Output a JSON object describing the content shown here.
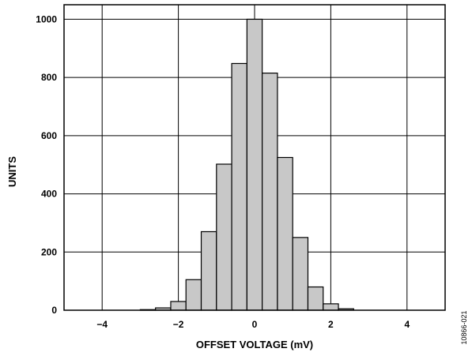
{
  "chart_data": {
    "type": "bar",
    "title": "",
    "xlabel": "OFFSET VOLTAGE (mV)",
    "ylabel": "UNITS",
    "xlim": [
      -5,
      5
    ],
    "ylim": [
      0,
      1050
    ],
    "xticks": [
      -4,
      -2,
      0,
      2,
      4
    ],
    "xtick_labels": [
      "−4",
      "−2",
      "0",
      "2",
      "4"
    ],
    "xgrid": [
      -4,
      -2,
      0,
      2,
      4
    ],
    "yticks": [
      0,
      200,
      400,
      600,
      800,
      1000
    ],
    "ytick_labels": [
      "0",
      "200",
      "400",
      "600",
      "800",
      "1000"
    ],
    "grid": true,
    "bar_width": 0.4,
    "bar_color": "#c8c8c8",
    "bins": [
      {
        "x": -4.8,
        "value": 0
      },
      {
        "x": -4.4,
        "value": 0
      },
      {
        "x": -4.0,
        "value": 0
      },
      {
        "x": -3.6,
        "value": 0
      },
      {
        "x": -3.2,
        "value": 0
      },
      {
        "x": -2.8,
        "value": 2
      },
      {
        "x": -2.4,
        "value": 8
      },
      {
        "x": -2.0,
        "value": 30
      },
      {
        "x": -1.6,
        "value": 105
      },
      {
        "x": -1.2,
        "value": 270
      },
      {
        "x": -0.8,
        "value": 502
      },
      {
        "x": -0.4,
        "value": 848
      },
      {
        "x": 0.0,
        "value": 1000
      },
      {
        "x": 0.4,
        "value": 815
      },
      {
        "x": 0.8,
        "value": 525
      },
      {
        "x": 1.2,
        "value": 250
      },
      {
        "x": 1.6,
        "value": 80
      },
      {
        "x": 2.0,
        "value": 22
      },
      {
        "x": 2.4,
        "value": 5
      },
      {
        "x": 2.8,
        "value": 0
      },
      {
        "x": 3.2,
        "value": 0
      },
      {
        "x": 3.6,
        "value": 0
      },
      {
        "x": 4.0,
        "value": 0
      },
      {
        "x": 4.4,
        "value": 0
      },
      {
        "x": 4.8,
        "value": 0
      }
    ],
    "figure_id": "10866-021"
  }
}
